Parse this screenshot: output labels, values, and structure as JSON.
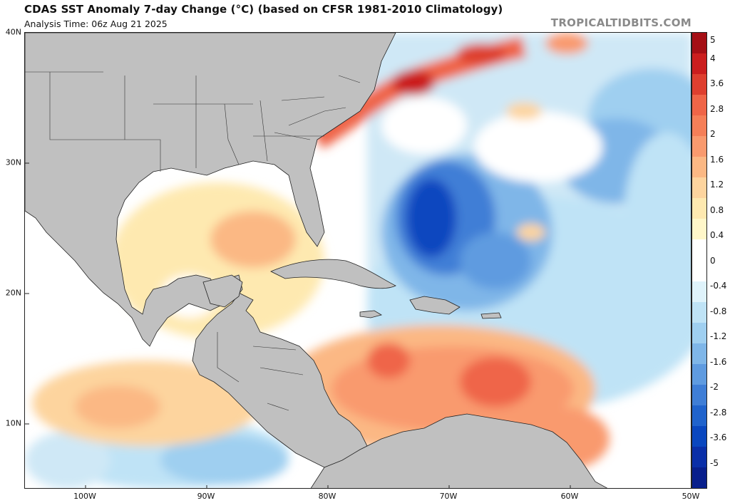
{
  "header": {
    "title": "CDAS SST Anomaly 7-day Change (°C) (based on CFSR 1981-2010 Climatology)",
    "analysis_time": "Analysis Time: 06z Aug 21 2025",
    "credit": "TROPICALTIDBITS.COM"
  },
  "map": {
    "lat_labels": [
      "40N",
      "30N",
      "20N",
      "10N"
    ],
    "lon_labels": [
      "100W",
      "90W",
      "80W",
      "70W",
      "60W",
      "50W"
    ],
    "land_color": "#c0c0c0",
    "ocean_neutral_color": "#ffffff"
  },
  "colorbar": {
    "labels": [
      "5",
      "4",
      "3.6",
      "2.8",
      "2",
      "1.6",
      "1.2",
      "0.8",
      "0.4",
      "0",
      "-0.4",
      "-0.8",
      "-1.2",
      "-1.6",
      "-2",
      "-2.8",
      "-3.6",
      "-5"
    ],
    "colors": [
      "#a50f15",
      "#cb1e1e",
      "#de3f2f",
      "#ef6548",
      "#f57f58",
      "#f99a6e",
      "#fbb884",
      "#fdd49e",
      "#fee9b0",
      "#fff7c9",
      "#ffffff",
      "#ffffff",
      "#dff3fb",
      "#bfe3f6",
      "#9fcff0",
      "#7fb6e8",
      "#5f9be0",
      "#3f7ed6",
      "#2063cc",
      "#0a47bf",
      "#0a2fa8",
      "#081f8c"
    ]
  }
}
